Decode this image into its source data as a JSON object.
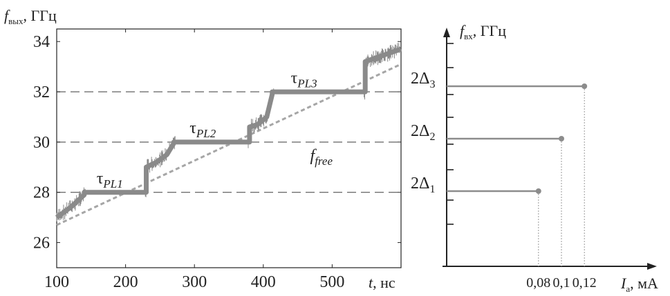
{
  "colors": {
    "signal": "#8a8a8a",
    "free": "#a6a6a6",
    "dashed": "#6f6f6f",
    "axis": "#222222",
    "marker": "#8c8c8c"
  },
  "chart_data": [
    {
      "type": "line",
      "ylabel": {
        "main": "f",
        "sub": "вых",
        "unit": ", ГГц"
      },
      "xlabel": {
        "main": "t",
        "unit": ", нс"
      },
      "xlim": [
        100,
        600
      ],
      "ylim": [
        25,
        34.5
      ],
      "x_ticks": [
        100,
        200,
        300,
        400,
        500
      ],
      "y_ticks": [
        26,
        28,
        30,
        32,
        34
      ],
      "grid": false,
      "reference_lines": [
        28,
        30,
        32
      ],
      "series": [
        {
          "x": [
            100,
            120,
            140,
            140,
            230,
            230,
            245,
            260,
            270,
            270,
            380,
            380,
            392,
            405,
            413,
            413,
            548,
            548,
            600
          ],
          "y": [
            27.0,
            27.4,
            27.9,
            28.0,
            28.0,
            29.0,
            29.2,
            29.5,
            29.95,
            30.0,
            30.0,
            30.6,
            30.7,
            31.0,
            31.9,
            32.0,
            32.0,
            33.2,
            33.7
          ]
        },
        {
          "name": "f_free",
          "x": [
            100,
            600
          ],
          "y": [
            26.7,
            33.1
          ]
        }
      ],
      "annotations": [
        {
          "main": "τ",
          "sub": "PL1",
          "x": 158,
          "y": 28.35
        },
        {
          "main": "τ",
          "sub": "PL2",
          "x": 293,
          "y": 30.35
        },
        {
          "main": "τ",
          "sub": "PL3",
          "x": 440,
          "y": 32.35
        },
        {
          "main": "f",
          "sub": "free",
          "x": 468,
          "y": 29.25
        }
      ]
    },
    {
      "type": "line",
      "ylabel": {
        "main": "f",
        "sub": "вх",
        "unit": ", ГГц"
      },
      "xlabel": {
        "main": "I",
        "sub": "а",
        "unit": ", мА"
      },
      "xlim": [
        0,
        0.2
      ],
      "x_ticks": [
        0.08,
        0.1,
        0.12
      ],
      "x_tick_labels": [
        "0,08",
        "0,1",
        "0,12"
      ],
      "points": [
        {
          "label": "2Δ",
          "index": "1",
          "x": 0.08,
          "level": 1
        },
        {
          "label": "2Δ",
          "index": "2",
          "x": 0.1,
          "level": 2
        },
        {
          "label": "2Δ",
          "index": "3",
          "x": 0.12,
          "level": 3
        }
      ]
    }
  ]
}
